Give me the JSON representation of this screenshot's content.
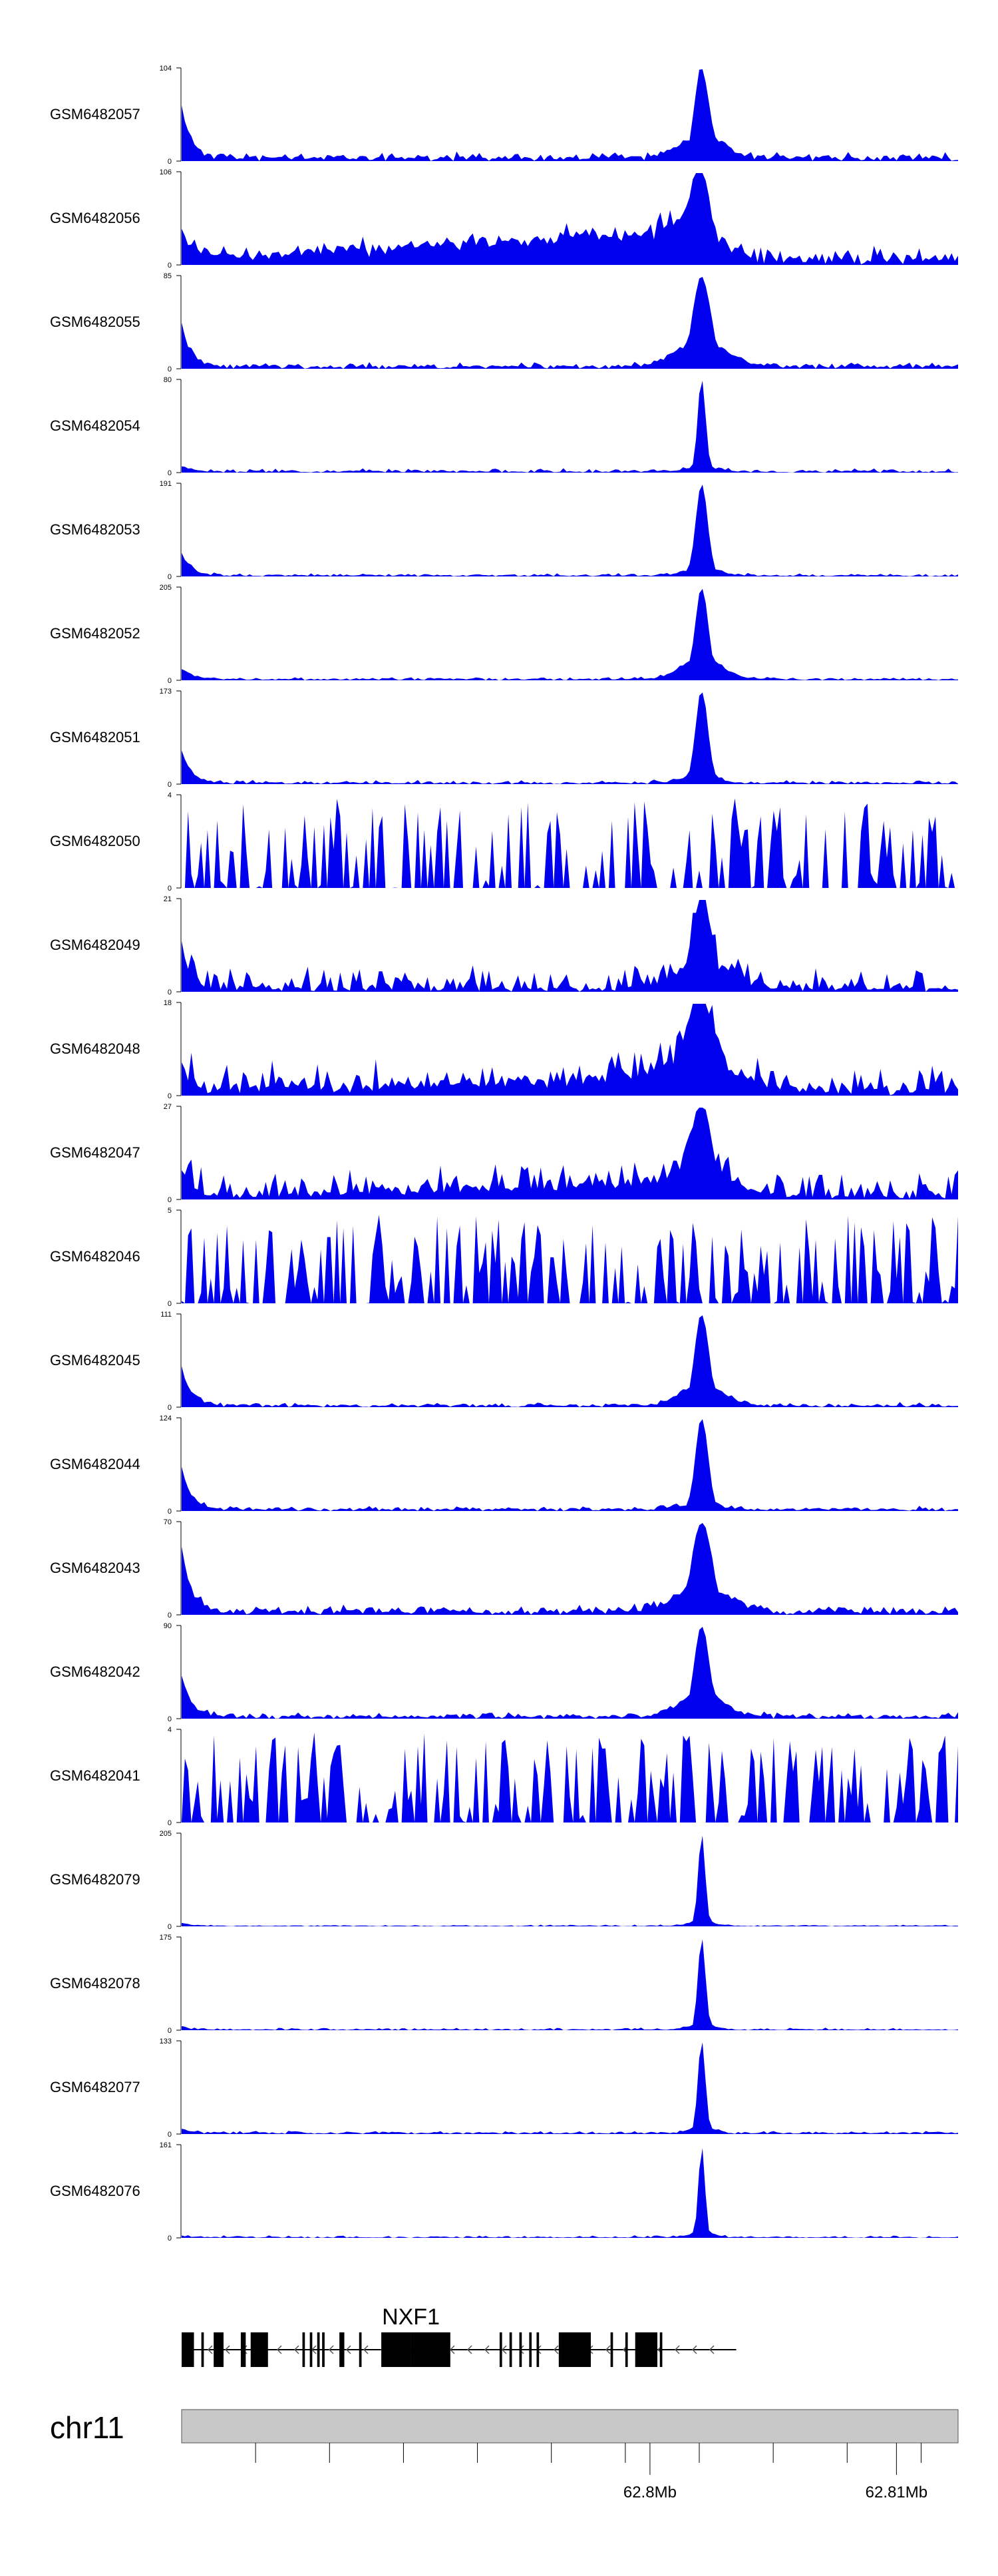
{
  "chart_data": {
    "type": "area",
    "title": "",
    "xlabel": "",
    "ylabel": "",
    "chromosome": "chr11",
    "xlim": [
      62.781,
      62.8125
    ],
    "x_ticks_mb": [
      62.784,
      62.787,
      62.79,
      62.793,
      62.796,
      62.799,
      62.802,
      62.805,
      62.808,
      62.811
    ],
    "x_tick_labels": [
      {
        "value": 62.8,
        "label": "62.8Mb"
      },
      {
        "value": 62.81,
        "label": "62.81Mb"
      }
    ],
    "fill_color": "#0000ee",
    "gene": {
      "name": "NXF1",
      "strand": "-",
      "start_mb": 62.781,
      "end_mb": 62.8035,
      "exons_mb": [
        [
          62.781,
          62.7815
        ],
        [
          62.7818,
          62.7819
        ],
        [
          62.7823,
          62.7825
        ],
        [
          62.7824,
          62.7827
        ],
        [
          62.7834,
          62.7836
        ],
        [
          62.7838,
          62.7845
        ],
        [
          62.7841,
          62.7845
        ],
        [
          62.7859,
          62.786
        ],
        [
          62.7862,
          62.7863
        ],
        [
          62.7865,
          62.7866
        ],
        [
          62.7867,
          62.7868
        ],
        [
          62.7874,
          62.7876
        ],
        [
          62.7882,
          62.7883
        ],
        [
          62.7891,
          62.7903
        ],
        [
          62.7903,
          62.7919
        ],
        [
          62.7939,
          62.794
        ],
        [
          62.7943,
          62.7944
        ],
        [
          62.7947,
          62.7948
        ],
        [
          62.7951,
          62.7952
        ],
        [
          62.7954,
          62.7955
        ],
        [
          62.7963,
          62.7964
        ],
        [
          62.7964,
          62.7969
        ],
        [
          62.797,
          62.7976
        ],
        [
          62.7968,
          62.7971
        ],
        [
          62.7984,
          62.7985
        ],
        [
          62.799,
          62.7991
        ],
        [
          62.7994,
          62.8003
        ],
        [
          62.8004,
          62.8005
        ]
      ]
    },
    "series": [
      {
        "label": "GSM6482057",
        "ymax": 104,
        "profile": "chip",
        "peak_mb": 62.8021,
        "peak_w": 0.00028,
        "base": 0.06,
        "noise": 0.05,
        "ramp": 0.0,
        "edge": 0.55,
        "seed": 11
      },
      {
        "label": "GSM6482056",
        "ymax": 106,
        "profile": "chip",
        "peak_mb": 62.8021,
        "peak_w": 0.00032,
        "base": 0.1,
        "noise": 0.12,
        "ramp": 0.38,
        "edge": 0.32,
        "seed": 12
      },
      {
        "label": "GSM6482055",
        "ymax": 85,
        "profile": "chip",
        "peak_mb": 62.8021,
        "peak_w": 0.00035,
        "base": 0.04,
        "noise": 0.04,
        "ramp": 0.0,
        "edge": 0.45,
        "seed": 13
      },
      {
        "label": "GSM6482054",
        "ymax": 80,
        "profile": "chip",
        "peak_mb": 62.8021,
        "peak_w": 0.00016,
        "base": 0.02,
        "noise": 0.03,
        "ramp": 0.0,
        "edge": 0.05,
        "seed": 14
      },
      {
        "label": "GSM6482053",
        "ymax": 191,
        "profile": "chip",
        "peak_mb": 62.8021,
        "peak_w": 0.00024,
        "base": 0.02,
        "noise": 0.02,
        "ramp": 0.0,
        "edge": 0.25,
        "seed": 15
      },
      {
        "label": "GSM6482052",
        "ymax": 205,
        "profile": "chip",
        "peak_mb": 62.8021,
        "peak_w": 0.00026,
        "base": 0.02,
        "noise": 0.02,
        "ramp": 0.0,
        "edge": 0.12,
        "seed": 16
      },
      {
        "label": "GSM6482051",
        "ymax": 173,
        "profile": "chip",
        "peak_mb": 62.8021,
        "peak_w": 0.00025,
        "base": 0.02,
        "noise": 0.03,
        "ramp": 0.0,
        "edge": 0.35,
        "seed": 17
      },
      {
        "label": "GSM6482050",
        "ymax": 4,
        "profile": "noise",
        "density": 0.55,
        "seed": 18
      },
      {
        "label": "GSM6482049",
        "ymax": 21,
        "profile": "chip",
        "peak_mb": 62.8021,
        "peak_w": 0.0004,
        "base": 0.05,
        "noise": 0.25,
        "ramp": 0.0,
        "edge": 0.45,
        "seed": 19
      },
      {
        "label": "GSM6482048",
        "ymax": 18,
        "profile": "chip",
        "peak_mb": 62.8021,
        "peak_w": 0.0006,
        "base": 0.08,
        "noise": 0.3,
        "ramp": 0.15,
        "edge": 0.3,
        "seed": 20
      },
      {
        "label": "GSM6482047",
        "ymax": 27,
        "profile": "chip",
        "peak_mb": 62.8021,
        "peak_w": 0.0004,
        "base": 0.05,
        "noise": 0.3,
        "ramp": 0.15,
        "edge": 0.3,
        "seed": 21
      },
      {
        "label": "GSM6482046",
        "ymax": 5,
        "profile": "noise",
        "density": 0.6,
        "seed": 22
      },
      {
        "label": "GSM6482045",
        "ymax": 111,
        "profile": "chip",
        "peak_mb": 62.8021,
        "peak_w": 0.00028,
        "base": 0.03,
        "noise": 0.03,
        "ramp": 0.0,
        "edge": 0.4,
        "seed": 23
      },
      {
        "label": "GSM6482044",
        "ymax": 124,
        "profile": "chip",
        "peak_mb": 62.8021,
        "peak_w": 0.00025,
        "base": 0.03,
        "noise": 0.03,
        "ramp": 0.0,
        "edge": 0.45,
        "seed": 24
      },
      {
        "label": "GSM6482043",
        "ymax": 70,
        "profile": "chip",
        "peak_mb": 62.8021,
        "peak_w": 0.00038,
        "base": 0.06,
        "noise": 0.06,
        "ramp": 0.0,
        "edge": 0.7,
        "seed": 25
      },
      {
        "label": "GSM6482042",
        "ymax": 90,
        "profile": "chip",
        "peak_mb": 62.8021,
        "peak_w": 0.0003,
        "base": 0.04,
        "noise": 0.04,
        "ramp": 0.0,
        "edge": 0.45,
        "seed": 26
      },
      {
        "label": "GSM6482041",
        "ymax": 4,
        "profile": "noise",
        "density": 0.55,
        "seed": 27
      },
      {
        "label": "GSM6482079",
        "ymax": 205,
        "profile": "chip",
        "peak_mb": 62.8021,
        "peak_w": 0.00014,
        "base": 0.01,
        "noise": 0.01,
        "ramp": 0.0,
        "edge": 0.03,
        "seed": 28
      },
      {
        "label": "GSM6482078",
        "ymax": 175,
        "profile": "chip",
        "peak_mb": 62.8021,
        "peak_w": 0.00015,
        "base": 0.01,
        "noise": 0.02,
        "ramp": 0.0,
        "edge": 0.03,
        "seed": 29
      },
      {
        "label": "GSM6482077",
        "ymax": 133,
        "profile": "chip",
        "peak_mb": 62.8021,
        "peak_w": 0.00015,
        "base": 0.02,
        "noise": 0.02,
        "ramp": 0.0,
        "edge": 0.04,
        "seed": 30
      },
      {
        "label": "GSM6482076",
        "ymax": 161,
        "profile": "chip",
        "peak_mb": 62.8021,
        "peak_w": 0.00013,
        "base": 0.01,
        "noise": 0.02,
        "ramp": 0.0,
        "edge": 0.02,
        "seed": 31
      }
    ]
  }
}
